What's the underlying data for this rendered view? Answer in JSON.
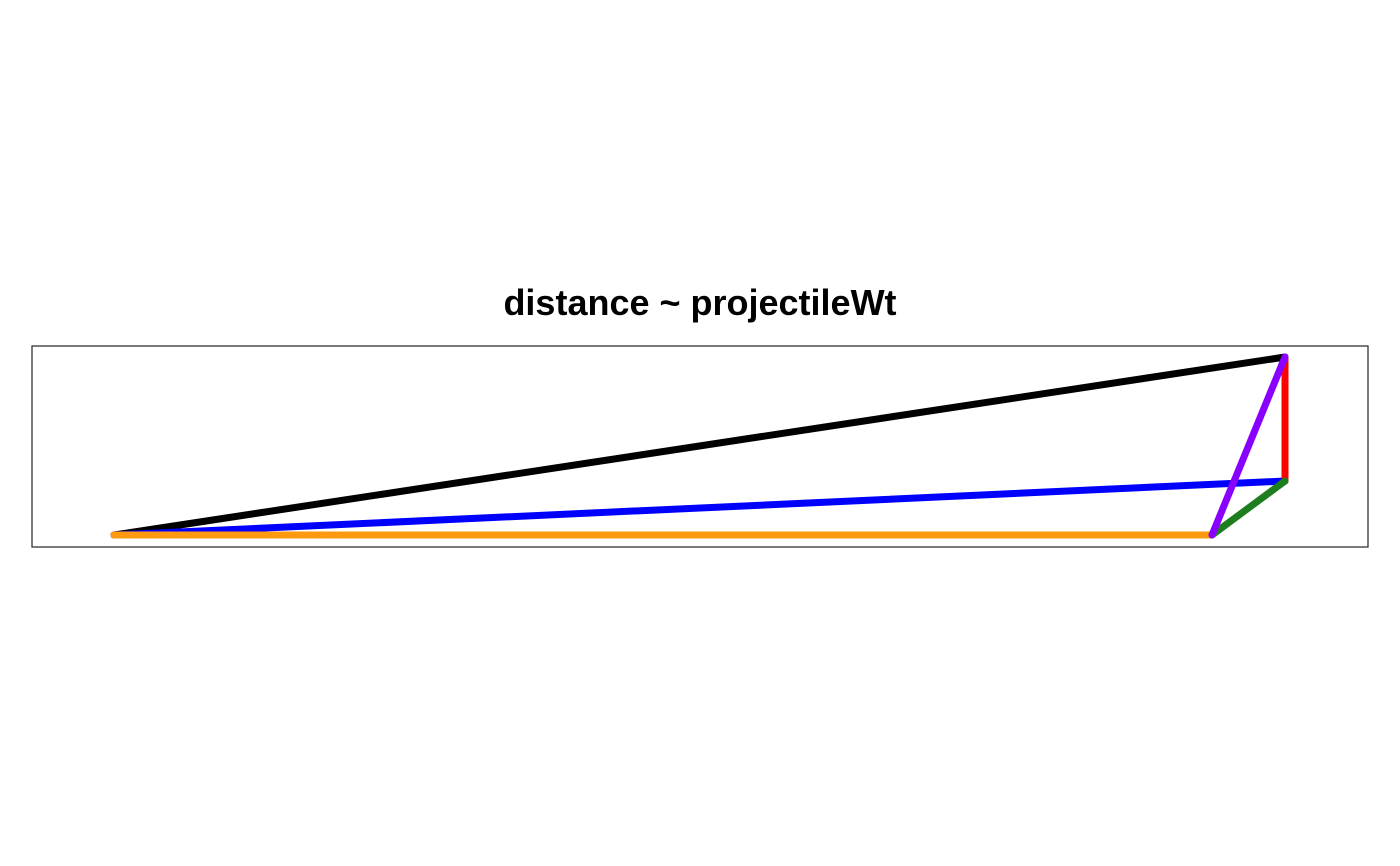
{
  "title": "distance ~ projectileWt",
  "segments": [
    {
      "name": "black-segment",
      "color": "#000000",
      "from": "p1",
      "to": "p6"
    },
    {
      "name": "blue-segment",
      "color": "#0000ff",
      "from": "p1",
      "to": "p5"
    },
    {
      "name": "orange-segment",
      "color": "#ff9a0e",
      "from": "p1",
      "to": "p4"
    },
    {
      "name": "red-segment",
      "color": "#ff0000",
      "from": "p5",
      "to": "p6"
    },
    {
      "name": "purple-segment",
      "color": "#8a00ff",
      "from": "p4",
      "to": "p6"
    },
    {
      "name": "green-segment",
      "color": "#1e7d1e",
      "from": "p4",
      "to": "p5"
    }
  ]
}
